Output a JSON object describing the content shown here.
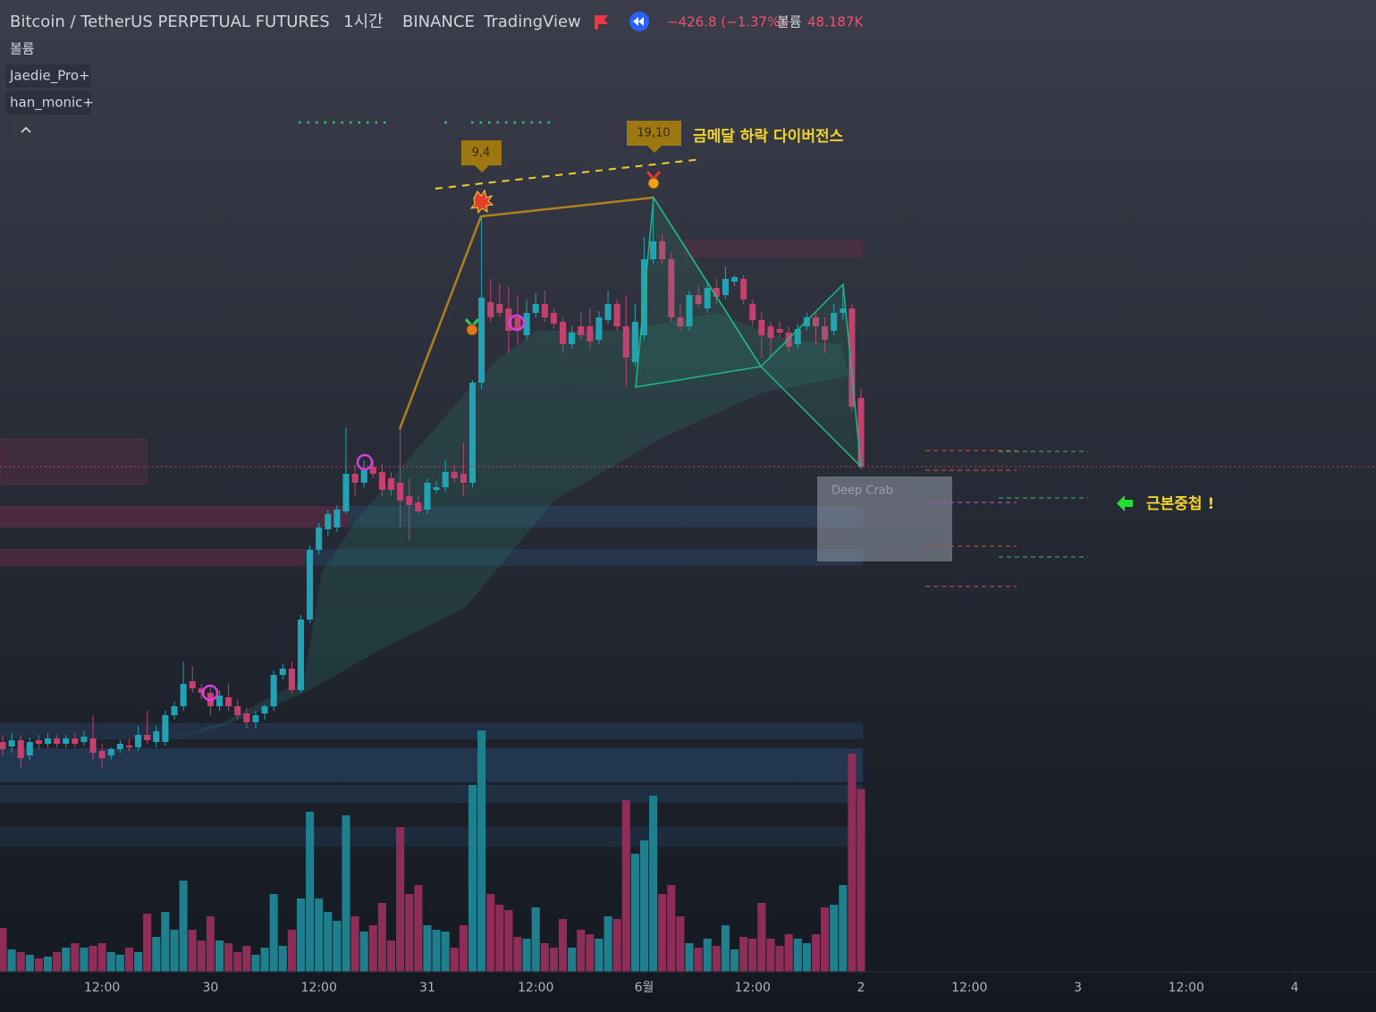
{
  "chart_data": {
    "type": "candlestick",
    "header": {
      "symbol": "Bitcoin / TetherUS PERPETUAL FUTURES",
      "interval": "1시간",
      "exchange": "BINANCE",
      "source": "TradingView",
      "change": "−426.8 (−1.37%)",
      "volume_name": "볼륨",
      "volume_value": "48.187K"
    },
    "indicators": [
      "볼륨",
      "Jaedie_Pro+",
      "han_monic+"
    ],
    "annotations": {
      "label_a": "9,4",
      "label_b": "19,10",
      "divergence": "금메달 하락 다이버전스",
      "pattern": "Deep Crab",
      "confluence": "근본중첩 !"
    },
    "up_color": "#22a3b5",
    "down_color": "#c2416e",
    "volume_up_color": "#1f7f8d",
    "volume_down_color": "#8e2d57",
    "ylim": [
      28652,
      33000
    ],
    "volume_lim": [
      0,
      256532
    ],
    "xlim": [
      0,
      152
    ],
    "xticks": [
      {
        "value": 11,
        "label": "12:00"
      },
      {
        "value": 23,
        "label": "30"
      },
      {
        "value": 35,
        "label": "12:00"
      },
      {
        "value": 47,
        "label": "31"
      },
      {
        "value": 59,
        "label": "12:00"
      },
      {
        "value": 71,
        "label": "6월"
      },
      {
        "value": 83,
        "label": "12:00"
      },
      {
        "value": 95,
        "label": "2"
      },
      {
        "value": 107,
        "label": "12:00"
      },
      {
        "value": 119,
        "label": "3"
      },
      {
        "value": 131,
        "label": "12:00"
      },
      {
        "value": 143,
        "label": "4"
      }
    ],
    "candles": [
      [
        29680,
        29712,
        29620,
        29648
      ],
      [
        29660,
        29720,
        29632,
        29688
      ],
      [
        29688,
        29712,
        29560,
        29608
      ],
      [
        29620,
        29700,
        29600,
        29680
      ],
      [
        29688,
        29712,
        29648,
        29672
      ],
      [
        29672,
        29720,
        29656,
        29696
      ],
      [
        29696,
        29712,
        29656,
        29672
      ],
      [
        29672,
        29712,
        29656,
        29696
      ],
      [
        29696,
        29720,
        29656,
        29672
      ],
      [
        29680,
        29728,
        29664,
        29704
      ],
      [
        29696,
        29800,
        29600,
        29632
      ],
      [
        29640,
        29672,
        29568,
        29608
      ],
      [
        29620,
        29656,
        29600,
        29648
      ],
      [
        29648,
        29688,
        29632,
        29672
      ],
      [
        29664,
        29696,
        29640,
        29656
      ],
      [
        29656,
        29752,
        29640,
        29712
      ],
      [
        29712,
        29820,
        29672,
        29688
      ],
      [
        29680,
        29752,
        29656,
        29728
      ],
      [
        29680,
        29820,
        29664,
        29800
      ],
      [
        29800,
        29860,
        29780,
        29840
      ],
      [
        29840,
        30040,
        29820,
        29940
      ],
      [
        29952,
        30020,
        29900,
        29920
      ],
      [
        29920,
        29940,
        29872,
        29900
      ],
      [
        29900,
        29928,
        29800,
        29840
      ],
      [
        29840,
        29912,
        29820,
        29888
      ],
      [
        29880,
        29940,
        29820,
        29840
      ],
      [
        29840,
        29872,
        29780,
        29800
      ],
      [
        29808,
        29832,
        29740,
        29768
      ],
      [
        29768,
        29820,
        29740,
        29800
      ],
      [
        29808,
        29848,
        29780,
        29840
      ],
      [
        29840,
        30000,
        29820,
        29980
      ],
      [
        29980,
        30032,
        29960,
        30008
      ],
      [
        30008,
        30040,
        29896,
        29912
      ],
      [
        29912,
        30248,
        29900,
        30228
      ],
      [
        30228,
        30560,
        30212,
        30540
      ],
      [
        30540,
        30660,
        30520,
        30640
      ],
      [
        30632,
        30720,
        30600,
        30700
      ],
      [
        30640,
        30740,
        30620,
        30720
      ],
      [
        30712,
        31088,
        30700,
        30880
      ],
      [
        30880,
        30920,
        30780,
        30840
      ],
      [
        30840,
        30940,
        30820,
        30900
      ],
      [
        30912,
        30940,
        30860,
        30880
      ],
      [
        30888,
        30928,
        30780,
        30808
      ],
      [
        30860,
        30888,
        30780,
        30808
      ],
      [
        30840,
        31080,
        30640,
        30760
      ],
      [
        30780,
        30860,
        30580,
        30740
      ],
      [
        30752,
        30780,
        30700,
        30712
      ],
      [
        30720,
        30860,
        30700,
        30840
      ],
      [
        30808,
        30848,
        30792,
        30820
      ],
      [
        30820,
        30940,
        30800,
        30888
      ],
      [
        30888,
        30920,
        30840,
        30860
      ],
      [
        30880,
        31020,
        30780,
        30840
      ],
      [
        30840,
        31300,
        30820,
        31288
      ],
      [
        31288,
        32032,
        31260,
        31668
      ],
      [
        31648,
        31752,
        31560,
        31580
      ],
      [
        31640,
        31728,
        31580,
        31600
      ],
      [
        31620,
        31720,
        31420,
        31520
      ],
      [
        31580,
        31680,
        31460,
        31528
      ],
      [
        31500,
        31660,
        31480,
        31600
      ],
      [
        31600,
        31688,
        31580,
        31640
      ],
      [
        31640,
        31700,
        31560,
        31580
      ],
      [
        31600,
        31620,
        31528,
        31552
      ],
      [
        31560,
        31580,
        31420,
        31460
      ],
      [
        31460,
        31540,
        31440,
        31512
      ],
      [
        31540,
        31600,
        31480,
        31500
      ],
      [
        31540,
        31620,
        31440,
        31472
      ],
      [
        31480,
        31608,
        31460,
        31580
      ],
      [
        31568,
        31700,
        31552,
        31640
      ],
      [
        31640,
        31660,
        31520,
        31540
      ],
      [
        31540,
        31680,
        31272,
        31400
      ],
      [
        31380,
        31640,
        31360,
        31560
      ],
      [
        31500,
        31940,
        31480,
        31840
      ],
      [
        31840,
        32112,
        31820,
        31920
      ],
      [
        31920,
        31952,
        31820,
        31840
      ],
      [
        31840,
        31872,
        31560,
        31580
      ],
      [
        31580,
        31640,
        31520,
        31540
      ],
      [
        31540,
        31700,
        31520,
        31680
      ],
      [
        31680,
        31720,
        31620,
        31640
      ],
      [
        31620,
        31740,
        31600,
        31712
      ],
      [
        31712,
        31752,
        31640,
        31672
      ],
      [
        31680,
        31808,
        31660,
        31752
      ],
      [
        31740,
        31768,
        31720,
        31760
      ],
      [
        31752,
        31768,
        31640,
        31660
      ],
      [
        31640,
        31660,
        31540,
        31568
      ],
      [
        31568,
        31600,
        31400,
        31500
      ],
      [
        31540,
        31560,
        31400,
        31488
      ],
      [
        31528,
        31560,
        31488,
        31512
      ],
      [
        31512,
        31540,
        31420,
        31448
      ],
      [
        31460,
        31552,
        31440,
        31528
      ],
      [
        31540,
        31600,
        31520,
        31580
      ],
      [
        31580,
        31600,
        31460,
        31540
      ],
      [
        31540,
        31580,
        31420,
        31480
      ],
      [
        31520,
        31640,
        31500,
        31600
      ],
      [
        31600,
        31728,
        31568,
        31620
      ],
      [
        31620,
        31640,
        31160,
        31180
      ],
      [
        31220,
        31260,
        30900,
        30912
      ]
    ],
    "volume": [
      11564,
      5900,
      5192,
      4484,
      3540,
      4012,
      5192,
      6372,
      7552,
      6372,
      6844,
      7552,
      5192,
      4484,
      6372,
      5192,
      15340,
      9204,
      15812,
      11092,
      24072,
      11092,
      8260,
      14632,
      8260,
      7552,
      5192,
      6844,
      4484,
      6372,
      20532,
      6844,
      11092,
      19352,
      42244,
      19352,
      15812,
      13452,
      41300,
      14632,
      10620,
      12272,
      18172,
      8260,
      38232,
      20532,
      22892,
      12272,
      11092,
      10620,
      6372,
      12272,
      49324,
      63720,
      20532,
      17700,
      16284,
      9204,
      8732,
      16992,
      7552,
      6372,
      13924,
      6372,
      11092,
      9912,
      8732,
      14632,
      13924,
      45312,
      31152,
      34692,
      46492,
      20532,
      22892,
      14632,
      7552,
      6372,
      8732,
      6844,
      12272,
      5900,
      9204,
      8732,
      18172,
      8732,
      6844,
      9912,
      8732,
      7552,
      9912,
      16992,
      17700,
      22892,
      57584,
      48187
    ]
  }
}
